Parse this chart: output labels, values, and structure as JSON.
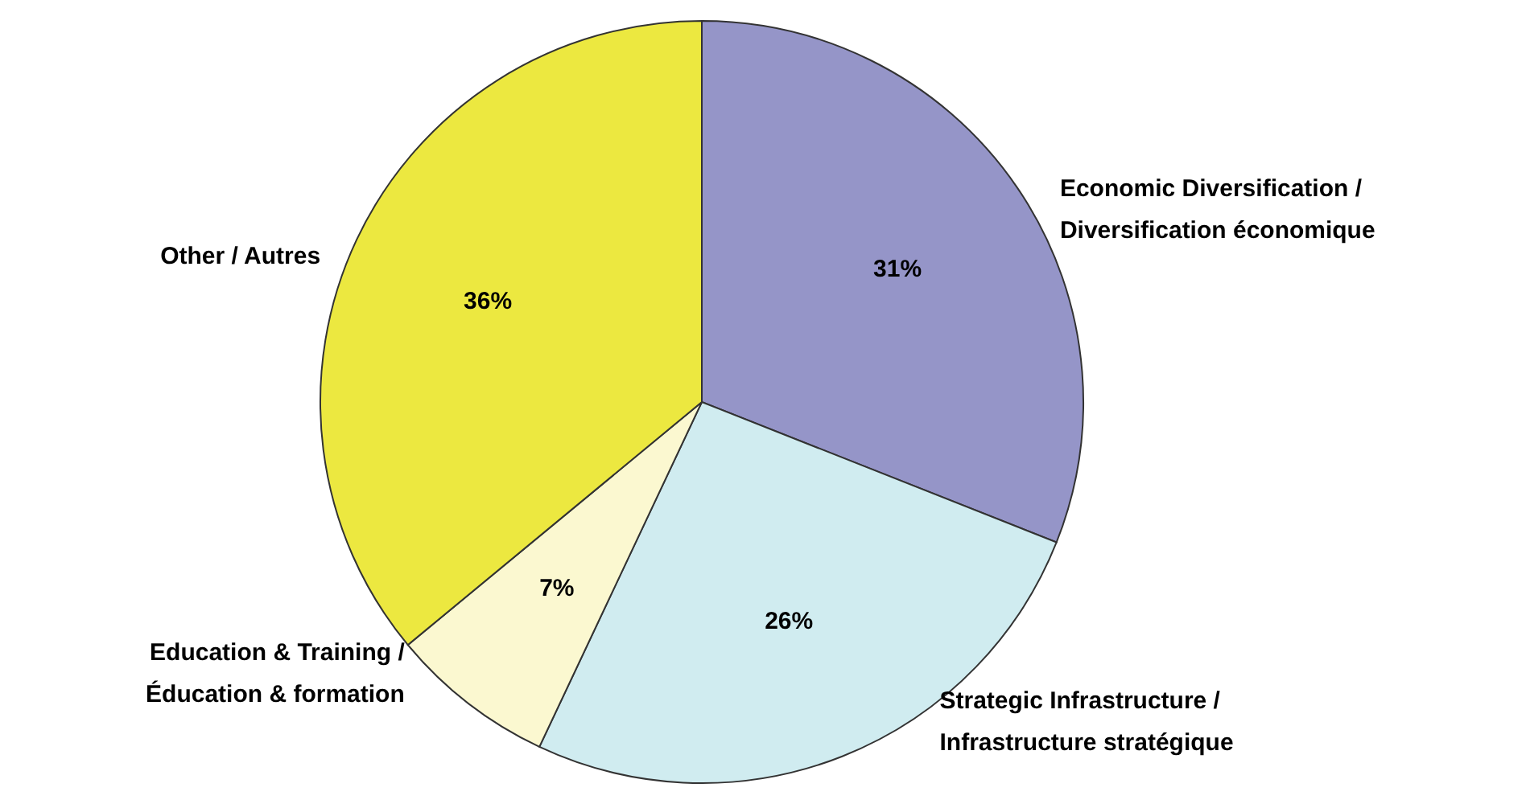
{
  "chart_data": {
    "type": "pie",
    "categories": [
      "Economic Diversification / Diversification économique",
      "Strategic Infrastructure / Infrastructure stratégique",
      "Education & Training / Éducation & formation",
      "Other / Autres"
    ],
    "values": [
      31,
      26,
      7,
      36
    ],
    "colors": [
      "#9595c8",
      "#d0ecf0",
      "#fbf8d0",
      "#ece840"
    ],
    "value_labels": [
      "31%",
      "26%",
      "7%",
      "36%"
    ]
  }
}
